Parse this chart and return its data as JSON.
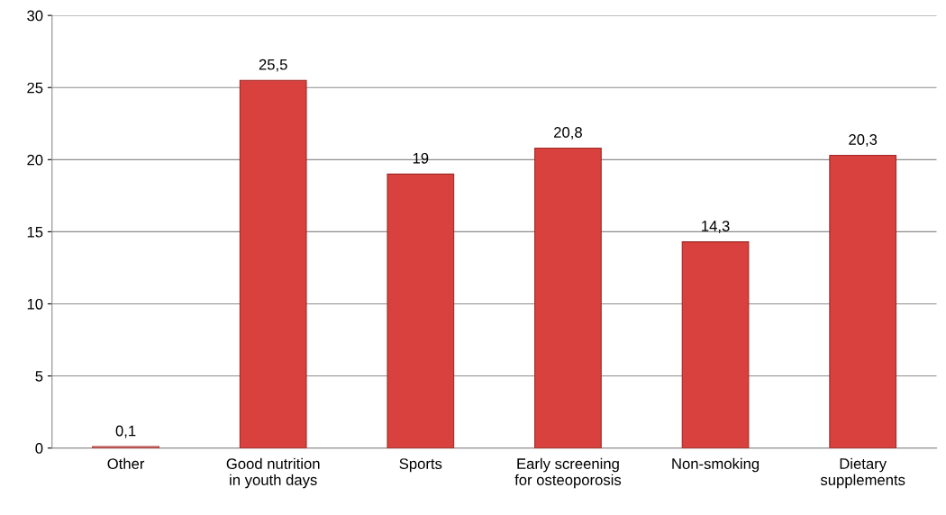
{
  "chart_data": {
    "type": "bar",
    "categories": [
      "Other",
      "Good nutrition\nin youth days",
      "Sports",
      "Early screening\nfor osteoporosis",
      "Non-smoking",
      "Dietary\nsupplements"
    ],
    "values": [
      0.1,
      25.5,
      19,
      20.8,
      14.3,
      20.3
    ],
    "value_labels": [
      "0,1",
      "25,5",
      "19",
      "20,8",
      "14,3",
      "20,3"
    ],
    "colors": [
      "#e8a3a1",
      "#d8413d",
      "#d8413d",
      "#d8413d",
      "#d8413d",
      "#d8413d"
    ],
    "ylim": [
      0,
      30
    ],
    "yticks": [
      0,
      5,
      10,
      15,
      20,
      25,
      30
    ],
    "grid": "y"
  }
}
